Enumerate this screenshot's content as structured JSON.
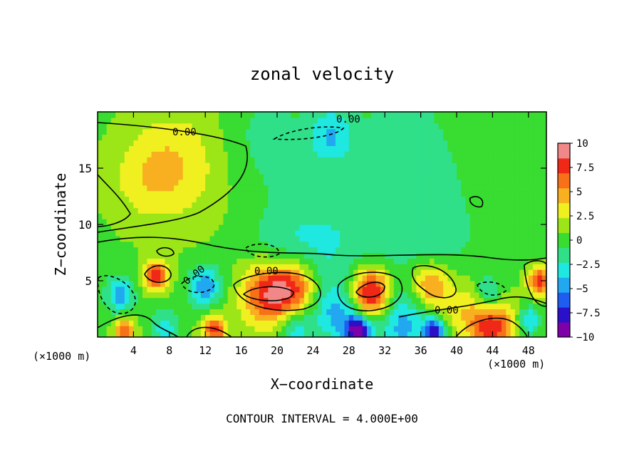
{
  "chart_data": {
    "type": "heatmap",
    "title": "zonal velocity",
    "xlabel": "X−coordinate",
    "ylabel": "Z−coordinate",
    "x_unit_left": "(×1000 m)",
    "x_unit_right": "(×1000 m)",
    "footer": "CONTOUR INTERVAL = 4.000E+00",
    "xlim": [
      0,
      50
    ],
    "ylim": [
      0,
      20
    ],
    "x_ticks": [
      4,
      8,
      12,
      16,
      20,
      24,
      28,
      32,
      36,
      40,
      44,
      48
    ],
    "y_ticks": [
      5,
      10,
      15
    ],
    "colorbar": {
      "ticks": [
        "10",
        "7.5",
        "5",
        "2.5",
        "0",
        "−2.5",
        "−5",
        "−7.5",
        "−10"
      ],
      "min": -10,
      "max": 10,
      "colors": [
        "#7e00a8",
        "#2a10c8",
        "#1f5cf0",
        "#22a8f0",
        "#1ee8e0",
        "#2fe089",
        "#39dc30",
        "#9ce618",
        "#f0f020",
        "#f8b020",
        "#f87018",
        "#f02818",
        "#f08888"
      ]
    },
    "contour_label": "0.00",
    "field_blobs": [
      {
        "x": 9,
        "z": 15.5,
        "v": 3,
        "r": 5
      },
      {
        "x": 5,
        "z": 14,
        "v": 2,
        "r": 4
      },
      {
        "x": 22,
        "z": 12,
        "v": 0.5,
        "r": 10
      },
      {
        "x": 40,
        "z": 14,
        "v": 0.3,
        "r": 10
      },
      {
        "x": 25,
        "z": 8.5,
        "v": -3,
        "r": 6
      },
      {
        "x": 37,
        "z": 9,
        "v": -2,
        "r": 7
      },
      {
        "x": 20,
        "z": 6.2,
        "v": -2.5,
        "r": 4
      },
      {
        "x": 19,
        "z": 17.5,
        "v": -2,
        "r": 5
      },
      {
        "x": 26,
        "z": 18,
        "v": -4,
        "r": 2.5
      },
      {
        "x": 34,
        "z": 17,
        "v": -2,
        "r": 6
      },
      {
        "x": 19,
        "z": 4,
        "v": 9,
        "r": 3
      },
      {
        "x": 22,
        "z": 4.5,
        "v": 7,
        "r": 2.5
      },
      {
        "x": 30.5,
        "z": 4,
        "v": 10,
        "r": 2.2
      },
      {
        "x": 6.5,
        "z": 5.5,
        "v": 7,
        "r": 1.4
      },
      {
        "x": 37,
        "z": 4.5,
        "v": 6,
        "r": 2.2
      },
      {
        "x": 49.2,
        "z": 5,
        "v": 7,
        "r": 1.3
      },
      {
        "x": 12,
        "z": 4.5,
        "v": -5.5,
        "r": 1.8
      },
      {
        "x": 2.5,
        "z": 3.8,
        "v": -5,
        "r": 1.6
      },
      {
        "x": 43.5,
        "z": 3.8,
        "v": -5,
        "r": 1.5
      },
      {
        "x": 26.5,
        "z": 2,
        "v": -4,
        "r": 2.5
      },
      {
        "x": 34,
        "z": 1.2,
        "v": -4.5,
        "r": 3
      },
      {
        "x": 29,
        "z": 0.6,
        "v": -9,
        "r": 1.5
      },
      {
        "x": 37.5,
        "z": 0.5,
        "v": -8,
        "r": 1.2
      },
      {
        "x": 44,
        "z": 1,
        "v": 7,
        "r": 2.5
      },
      {
        "x": 3,
        "z": 0.6,
        "v": 6,
        "r": 1.2
      },
      {
        "x": 13,
        "z": 0.6,
        "v": 7,
        "r": 1.4
      },
      {
        "x": 22,
        "z": 0.8,
        "v": -4,
        "r": 1.8
      },
      {
        "x": 7.5,
        "z": 0.8,
        "v": -3.5,
        "r": 1.6
      },
      {
        "x": 48,
        "z": 1.5,
        "v": -5,
        "r": 1.2
      },
      {
        "x": 41,
        "z": 2.5,
        "v": 3,
        "r": 3
      }
    ]
  }
}
